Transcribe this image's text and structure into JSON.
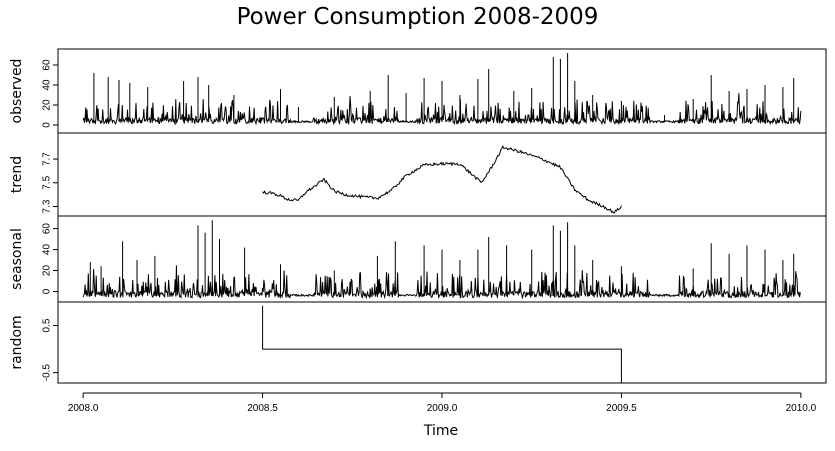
{
  "chart_data": {
    "type": "line",
    "title": "Power Consumption 2008-2009",
    "xlabel": "Time",
    "xlim": [
      2007.93,
      2010.07
    ],
    "x_ticks": [
      {
        "value": 2008.0,
        "label": "2008.0"
      },
      {
        "value": 2008.5,
        "label": "2008.5"
      },
      {
        "value": 2009.0,
        "label": "2009.0"
      },
      {
        "value": 2009.5,
        "label": "2009.5"
      },
      {
        "value": 2010.0,
        "label": "2010.0"
      }
    ],
    "grid": false,
    "line_color": "#000000",
    "panels": [
      {
        "name": "observed",
        "ylabel": "observed",
        "ylim": [
          -8,
          76
        ],
        "y_ticks": [
          {
            "value": 0,
            "label": "0"
          },
          {
            "value": 20,
            "label": "20"
          },
          {
            "value": 40,
            "label": "40"
          },
          {
            "value": 60,
            "label": "60"
          }
        ],
        "x_range": [
          2008.0,
          2010.0
        ],
        "series_kind": "noisy-spikes",
        "baseline": 3,
        "noise": 3,
        "quiet_intervals": [
          [
            2008.58,
            2008.64
          ],
          [
            2008.88,
            2008.93
          ],
          [
            2009.58,
            2009.66
          ]
        ],
        "spikes": [
          {
            "x": 2008.03,
            "y": 52
          },
          {
            "x": 2008.07,
            "y": 48
          },
          {
            "x": 2008.1,
            "y": 45
          },
          {
            "x": 2008.13,
            "y": 42
          },
          {
            "x": 2008.18,
            "y": 38
          },
          {
            "x": 2008.28,
            "y": 44
          },
          {
            "x": 2008.32,
            "y": 48
          },
          {
            "x": 2008.35,
            "y": 40
          },
          {
            "x": 2008.42,
            "y": 30
          },
          {
            "x": 2008.55,
            "y": 36
          },
          {
            "x": 2008.6,
            "y": 18
          },
          {
            "x": 2008.7,
            "y": 28
          },
          {
            "x": 2008.8,
            "y": 34
          },
          {
            "x": 2008.85,
            "y": 50
          },
          {
            "x": 2008.9,
            "y": 32
          },
          {
            "x": 2008.95,
            "y": 47
          },
          {
            "x": 2009.0,
            "y": 44
          },
          {
            "x": 2009.05,
            "y": 30
          },
          {
            "x": 2009.1,
            "y": 46
          },
          {
            "x": 2009.13,
            "y": 56
          },
          {
            "x": 2009.2,
            "y": 34
          },
          {
            "x": 2009.25,
            "y": 37
          },
          {
            "x": 2009.31,
            "y": 68
          },
          {
            "x": 2009.33,
            "y": 66
          },
          {
            "x": 2009.35,
            "y": 72
          },
          {
            "x": 2009.37,
            "y": 44
          },
          {
            "x": 2009.42,
            "y": 30
          },
          {
            "x": 2009.5,
            "y": 24
          },
          {
            "x": 2009.62,
            "y": 10
          },
          {
            "x": 2009.7,
            "y": 26
          },
          {
            "x": 2009.75,
            "y": 50
          },
          {
            "x": 2009.8,
            "y": 34
          },
          {
            "x": 2009.85,
            "y": 36
          },
          {
            "x": 2009.9,
            "y": 40
          },
          {
            "x": 2009.95,
            "y": 38
          },
          {
            "x": 2009.98,
            "y": 47
          }
        ]
      },
      {
        "name": "trend",
        "ylabel": "trend",
        "ylim": [
          7.22,
          7.92
        ],
        "y_ticks": [
          {
            "value": 7.3,
            "label": "7.3"
          },
          {
            "value": 7.5,
            "label": "7.5"
          },
          {
            "value": 7.7,
            "label": "7.7"
          }
        ],
        "x_range": [
          2008.5,
          2009.5
        ],
        "series_kind": "smooth-wiggle",
        "noise": 0.012,
        "points": [
          [
            2008.5,
            7.42
          ],
          [
            2008.53,
            7.41
          ],
          [
            2008.55,
            7.39
          ],
          [
            2008.57,
            7.36
          ],
          [
            2008.6,
            7.35
          ],
          [
            2008.62,
            7.42
          ],
          [
            2008.65,
            7.48
          ],
          [
            2008.67,
            7.53
          ],
          [
            2008.7,
            7.43
          ],
          [
            2008.73,
            7.4
          ],
          [
            2008.78,
            7.38
          ],
          [
            2008.82,
            7.37
          ],
          [
            2008.86,
            7.44
          ],
          [
            2008.9,
            7.56
          ],
          [
            2008.95,
            7.65
          ],
          [
            2009.0,
            7.66
          ],
          [
            2009.05,
            7.66
          ],
          [
            2009.08,
            7.58
          ],
          [
            2009.11,
            7.5
          ],
          [
            2009.14,
            7.64
          ],
          [
            2009.17,
            7.8
          ],
          [
            2009.22,
            7.76
          ],
          [
            2009.28,
            7.7
          ],
          [
            2009.33,
            7.63
          ],
          [
            2009.37,
            7.44
          ],
          [
            2009.41,
            7.35
          ],
          [
            2009.45,
            7.3
          ],
          [
            2009.48,
            7.25
          ],
          [
            2009.5,
            7.3
          ]
        ]
      },
      {
        "name": "seasonal",
        "ylabel": "seasonal",
        "ylim": [
          -10,
          72
        ],
        "y_ticks": [
          {
            "value": 0,
            "label": "0"
          },
          {
            "value": 20,
            "label": "20"
          },
          {
            "value": 40,
            "label": "40"
          },
          {
            "value": 60,
            "label": "60"
          }
        ],
        "x_range": [
          2008.0,
          2010.0
        ],
        "series_kind": "noisy-spikes",
        "baseline": -4,
        "noise": 3,
        "quiet_intervals": [
          [
            2008.58,
            2008.64
          ],
          [
            2008.88,
            2008.93
          ],
          [
            2009.58,
            2009.66
          ]
        ],
        "spikes": [
          {
            "x": 2008.02,
            "y": 28
          },
          {
            "x": 2008.05,
            "y": 24
          },
          {
            "x": 2008.11,
            "y": 48
          },
          {
            "x": 2008.15,
            "y": 30
          },
          {
            "x": 2008.2,
            "y": 34
          },
          {
            "x": 2008.32,
            "y": 63
          },
          {
            "x": 2008.34,
            "y": 56
          },
          {
            "x": 2008.36,
            "y": 68
          },
          {
            "x": 2008.38,
            "y": 50
          },
          {
            "x": 2008.45,
            "y": 42
          },
          {
            "x": 2008.55,
            "y": 26
          },
          {
            "x": 2008.7,
            "y": 20
          },
          {
            "x": 2008.82,
            "y": 34
          },
          {
            "x": 2008.87,
            "y": 48
          },
          {
            "x": 2008.95,
            "y": 44
          },
          {
            "x": 2009.0,
            "y": 40
          },
          {
            "x": 2009.05,
            "y": 30
          },
          {
            "x": 2009.1,
            "y": 40
          },
          {
            "x": 2009.13,
            "y": 52
          },
          {
            "x": 2009.18,
            "y": 44
          },
          {
            "x": 2009.25,
            "y": 40
          },
          {
            "x": 2009.31,
            "y": 63
          },
          {
            "x": 2009.33,
            "y": 58
          },
          {
            "x": 2009.35,
            "y": 66
          },
          {
            "x": 2009.37,
            "y": 44
          },
          {
            "x": 2009.42,
            "y": 30
          },
          {
            "x": 2009.5,
            "y": 24
          },
          {
            "x": 2009.7,
            "y": 22
          },
          {
            "x": 2009.75,
            "y": 46
          },
          {
            "x": 2009.8,
            "y": 36
          },
          {
            "x": 2009.85,
            "y": 44
          },
          {
            "x": 2009.9,
            "y": 40
          },
          {
            "x": 2009.95,
            "y": 30
          },
          {
            "x": 2009.98,
            "y": 36
          }
        ]
      },
      {
        "name": "random",
        "ylabel": "random",
        "ylim": [
          -0.72,
          1.0
        ],
        "y_ticks": [
          {
            "value": -0.5,
            "label": "-0.5"
          },
          {
            "value": 0.5,
            "label": "0.5"
          }
        ],
        "x_range": [
          2008.5,
          2009.5
        ],
        "series_kind": "step",
        "points": [
          [
            2008.5,
            0.92
          ],
          [
            2008.5,
            0.0
          ],
          [
            2009.5,
            0.0
          ],
          [
            2009.5,
            -0.72
          ]
        ]
      }
    ]
  }
}
